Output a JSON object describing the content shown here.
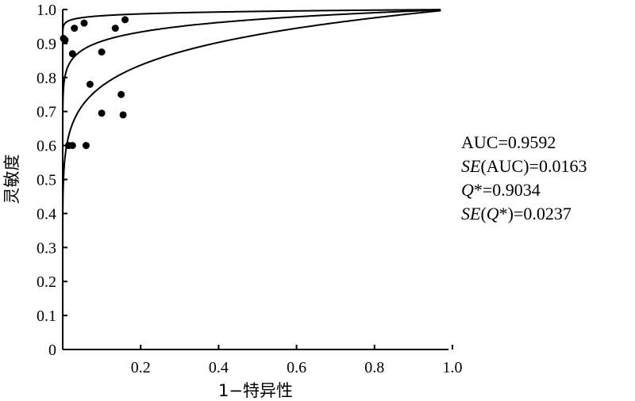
{
  "chart_data": {
    "type": "scatter",
    "title": "",
    "xlabel": "1−特异性",
    "ylabel": "灵敏度",
    "xlim": [
      0,
      1.0
    ],
    "ylim": [
      0,
      1.0
    ],
    "x_ticks": [
      "0.2",
      "0.4",
      "0.6",
      "0.8",
      "1.0"
    ],
    "y_ticks": [
      "0",
      "0.1",
      "0.2",
      "0.3",
      "0.4",
      "0.5",
      "0.6",
      "0.7",
      "0.8",
      "0.9",
      "1.0"
    ],
    "grid": false,
    "points": [
      {
        "x": 0.002,
        "y": 0.915
      },
      {
        "x": 0.006,
        "y": 0.91
      },
      {
        "x": 0.03,
        "y": 0.945
      },
      {
        "x": 0.055,
        "y": 0.96
      },
      {
        "x": 0.16,
        "y": 0.97
      },
      {
        "x": 0.135,
        "y": 0.945
      },
      {
        "x": 0.025,
        "y": 0.87
      },
      {
        "x": 0.1,
        "y": 0.875
      },
      {
        "x": 0.07,
        "y": 0.78
      },
      {
        "x": 0.15,
        "y": 0.75
      },
      {
        "x": 0.1,
        "y": 0.695
      },
      {
        "x": 0.155,
        "y": 0.69
      },
      {
        "x": 0.025,
        "y": 0.6
      },
      {
        "x": 0.015,
        "y": 0.6
      },
      {
        "x": 0.06,
        "y": 0.6
      }
    ],
    "curves": [
      {
        "auc": 0.992
      },
      {
        "auc": 0.9592
      },
      {
        "auc": 0.9
      }
    ],
    "curve_x_end": 0.97
  },
  "stats": {
    "auc_line": "AUC=0.9592",
    "se_auc_prefix": "SE",
    "se_auc_rest": "(AUC)=0.0163",
    "q_prefix": "Q",
    "q_rest": "*=0.9034",
    "se_q_prefix": "SE",
    "se_q_mid": "(",
    "se_q_q": "Q",
    "se_q_rest": "*)=0.0237"
  }
}
